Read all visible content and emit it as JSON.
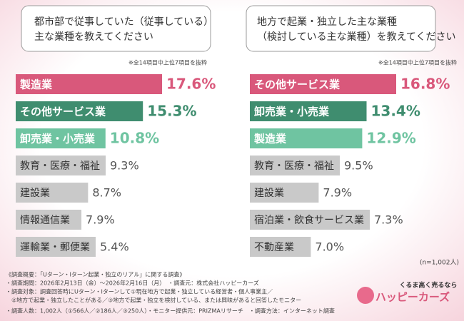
{
  "chart_data": [
    {
      "type": "bar",
      "orientation": "horizontal",
      "title": [
        "都市部で従事していた（従事している）",
        "主な業種を教えてください"
      ],
      "note": "※全14項目中上位7項目を抜粋",
      "categories": [
        "製造業",
        "その他サービス業",
        "卸売業・小売業",
        "教育・医療・福祉",
        "建設業",
        "情報通信業",
        "運輸業・郵便業"
      ],
      "values": [
        17.6,
        15.3,
        10.8,
        9.3,
        8.7,
        7.9,
        5.4
      ],
      "value_labels": [
        "17.6%",
        "15.3%",
        "10.8%",
        "9.3%",
        "8.7%",
        "7.9%",
        "5.4%"
      ],
      "colors": [
        "#d9587b",
        "#3f8d6f",
        "#6fc4a1",
        "#c9c9c9",
        "#c9c9c9",
        "#c9c9c9",
        "#c9c9c9"
      ]
    },
    {
      "type": "bar",
      "orientation": "horizontal",
      "title": [
        "地方で起業・独立した主な業種",
        "（検討している主な業種）を教えてください"
      ],
      "note": "※全14項目中上位7項目を抜粋",
      "categories": [
        "その他サービス業",
        "卸売業・小売業",
        "製造業",
        "教育・医療・福祉",
        "建設業",
        "宿泊業・飲食サービス業",
        "不動産業"
      ],
      "values": [
        16.8,
        13.4,
        12.9,
        9.5,
        7.9,
        7.3,
        7.0
      ],
      "value_labels": [
        "16.8%",
        "13.4%",
        "12.9%",
        "9.5%",
        "7.9%",
        "7.3%",
        "7.0%"
      ],
      "colors": [
        "#d9587b",
        "#3f8d6f",
        "#6fc4a1",
        "#c9c9c9",
        "#c9c9c9",
        "#c9c9c9",
        "#c9c9c9"
      ]
    }
  ],
  "respondents": "(n=1,002人)",
  "footer": [
    "《調査概要：「Uターン・Iターン起業・独立のリアル」に関する調査》",
    "・調査期間：2026年2月13日（金）～2026年2月16日（月）　・調査元：株式会社ハッピーカーズ",
    "・調査対象：調査回答時にUターン・Iターンして①現在地方で起業・独立している経営者・個人事業主／",
    "　②地方で起業・独立したことがある／③地方で起業・独立を検討している、または興味があると回答したモニター",
    "・調査人数：1,002人（①566人／②186人／③250人）・モニター提供元：PRIZMAリサーチ　・調査方法：インターネット調査"
  ],
  "logo": {
    "tagline": "くるま高く売るなら",
    "name": "ハッピーカーズ"
  }
}
